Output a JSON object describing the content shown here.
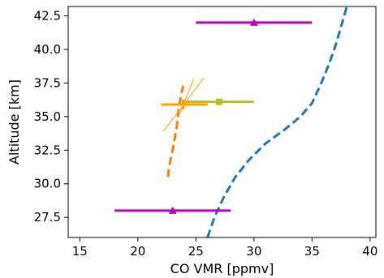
{
  "chart_data": {
    "type": "line",
    "xlabel": "CO VMR [ppmv]",
    "ylabel": "Altitude [km]",
    "xlim": [
      14,
      40.5
    ],
    "ylim": [
      26,
      43.2
    ],
    "xticks": [
      15,
      20,
      25,
      30,
      35,
      40
    ],
    "yticks": [
      27.5,
      30.0,
      32.5,
      35.0,
      37.5,
      40.0,
      42.5
    ],
    "grid": false,
    "legend": "none",
    "series": [
      {
        "type": "dashed-line",
        "color": "#1f77b4",
        "points": [
          [
            26.0,
            26.0
          ],
          [
            26.6,
            27.5
          ],
          [
            27.4,
            29.0
          ],
          [
            28.4,
            30.5
          ],
          [
            29.6,
            31.8
          ],
          [
            31.0,
            33.0
          ],
          [
            32.6,
            34.0
          ],
          [
            34.0,
            35.0
          ],
          [
            35.0,
            36.0
          ],
          [
            35.8,
            37.5
          ],
          [
            36.5,
            39.0
          ],
          [
            37.1,
            40.5
          ],
          [
            37.6,
            42.0
          ],
          [
            38.0,
            43.2
          ]
        ]
      },
      {
        "type": "dashed-line",
        "color": "#ff7f0e",
        "points": [
          [
            22.6,
            30.5
          ],
          [
            22.7,
            31.3
          ],
          [
            23.0,
            32.5
          ],
          [
            23.2,
            33.5
          ],
          [
            23.4,
            34.5
          ],
          [
            23.5,
            35.5
          ],
          [
            23.7,
            36.5
          ],
          [
            23.9,
            37.3
          ]
        ]
      },
      {
        "type": "errorbar",
        "color": "#bf00bf",
        "marker": "triangle",
        "points": [
          {
            "x": 30.0,
            "y": 42.0,
            "xerr_low": 25.0,
            "xerr_high": 35.0
          },
          {
            "x": 23.0,
            "y": 28.0,
            "xerr_low": 18.0,
            "xerr_high": 28.0
          }
        ]
      },
      {
        "type": "errorbar",
        "color": "#bcbd22",
        "marker": "square",
        "points": [
          {
            "x": 27.0,
            "y": 36.1,
            "xerr_low": 24.0,
            "xerr_high": 30.0
          }
        ]
      },
      {
        "type": "errorbar",
        "color": "#ff9f00",
        "marker": "plus",
        "points": [
          {
            "x": 23.9,
            "y": 35.9,
            "xerr_low": 22.0,
            "xerr_high": 26.0
          }
        ]
      },
      {
        "type": "thin-line",
        "color": "#ffa500",
        "points": [
          [
            22.2,
            33.9
          ],
          [
            25.7,
            37.9
          ]
        ]
      },
      {
        "type": "thin-line",
        "color": "#ffa500",
        "points": [
          [
            23.6,
            35.2
          ],
          [
            24.8,
            37.8
          ]
        ]
      }
    ]
  }
}
